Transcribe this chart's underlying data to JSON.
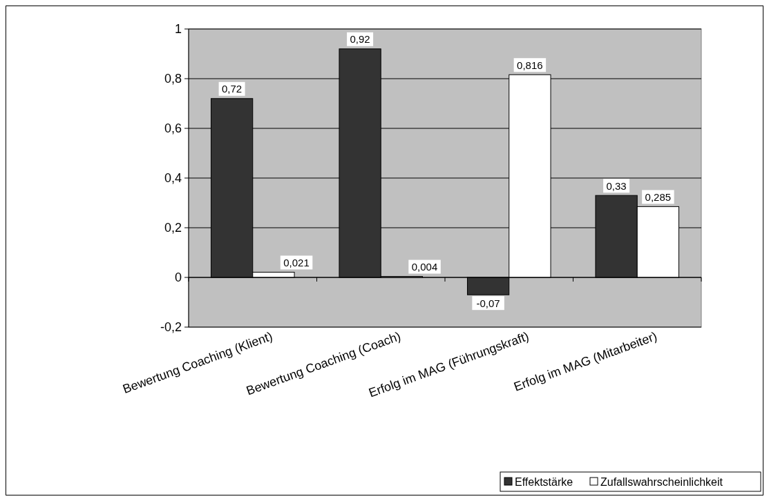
{
  "chart_data": {
    "type": "bar",
    "categories": [
      "Bewertung Coaching (Klient)",
      "Bewertung Coaching (Coach)",
      "Erfolg im MAG (Führungskraft)",
      "Erfolg im MAG (Mitarbeiter)"
    ],
    "series": [
      {
        "name": "Effektstärke",
        "color": "#333333",
        "values": [
          0.72,
          0.92,
          -0.07,
          0.33
        ],
        "value_labels": [
          "0,72",
          "0,92",
          "-0,07",
          "0,33"
        ]
      },
      {
        "name": "Zufallswahrscheinlichkeit",
        "color": "#ffffff",
        "values": [
          0.021,
          0.004,
          0.816,
          0.285
        ],
        "value_labels": [
          "0,021",
          "0,004",
          "0,816",
          "0,285"
        ]
      }
    ],
    "ylim": [
      -0.2,
      1
    ],
    "yticks": [
      {
        "value": -0.2,
        "label": "-0,2"
      },
      0,
      {
        "value": 0.2,
        "label": "0,2"
      },
      {
        "value": 0.4,
        "label": "0,4"
      },
      {
        "value": 0.6,
        "label": "0,6"
      },
      {
        "value": 0.8,
        "label": "0,8"
      },
      1
    ],
    "grid": "y",
    "legend": "bottom right"
  }
}
